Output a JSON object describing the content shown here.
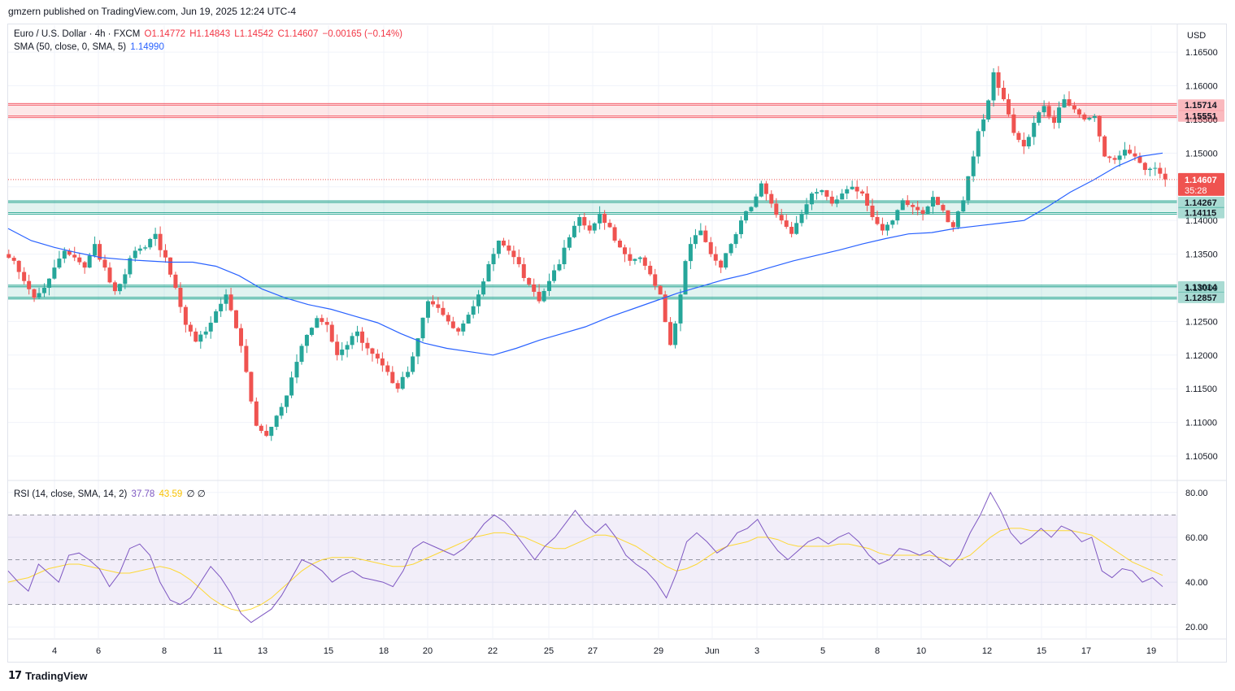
{
  "header": {
    "text": "gmzern published on TradingView.com, Jun 19, 2025 12:24 UTC-4"
  },
  "legend": {
    "symbol": "Euro / U.S. Dollar · 4h · FXCM",
    "open": "O1.14772",
    "high": "H1.14843",
    "low": "L1.14542",
    "close": "C1.14607",
    "change": "−0.00165 (−0.14%)",
    "sma_label": "SMA (50, close, 0, SMA, 5)",
    "sma_value": "1.14990",
    "rsi_label": "RSI (14, close, SMA, 14, 2)",
    "rsi_value": "37.78",
    "rsi_ma_value": "43.59",
    "rsi_extra": "∅ ∅"
  },
  "currency": "USD",
  "footer": {
    "brand": "TradingView",
    "logo": "17"
  },
  "colors": {
    "up": "#26a69a",
    "down": "#ef5350",
    "sma": "#2962ff",
    "rsi": "#7e57c2",
    "rsi_ma": "#fdd835",
    "resistance": "#f23645",
    "support": "#089981"
  },
  "chart_data": [
    {
      "type": "candlestick",
      "title": "Euro / U.S. Dollar · 4h · FXCM",
      "y_axis": {
        "ticks": [
          "1.16500",
          "1.16000",
          "1.15500",
          "1.15000",
          "1.14500",
          "1.14000",
          "1.13500",
          "1.13000",
          "1.12500",
          "1.12000",
          "1.11500",
          "1.11000",
          "1.10500"
        ],
        "range": [
          1.1015,
          1.169
        ]
      },
      "x_axis": {
        "ticks": [
          "4",
          "6",
          "8",
          "11",
          "13",
          "15",
          "18",
          "20",
          "22",
          "25",
          "27",
          "29",
          "Jun",
          "3",
          "5",
          "8",
          "10",
          "12",
          "15",
          "17",
          "19"
        ]
      },
      "price_path": [
        1.134,
        1.131,
        1.1285,
        1.13,
        1.133,
        1.1355,
        1.1345,
        1.133,
        1.1365,
        1.133,
        1.1295,
        1.132,
        1.1355,
        1.136,
        1.138,
        1.1345,
        1.13,
        1.1245,
        1.122,
        1.1235,
        1.1265,
        1.129,
        1.124,
        1.1175,
        1.1095,
        1.108,
        1.111,
        1.114,
        1.119,
        1.123,
        1.1255,
        1.1245,
        1.12,
        1.1215,
        1.1235,
        1.121,
        1.1195,
        1.1175,
        1.115,
        1.1175,
        1.1225,
        1.128,
        1.127,
        1.125,
        1.1235,
        1.126,
        1.129,
        1.1335,
        1.137,
        1.1355,
        1.1335,
        1.1305,
        1.128,
        1.131,
        1.1335,
        1.1375,
        1.1405,
        1.1385,
        1.141,
        1.139,
        1.136,
        1.134,
        1.1345,
        1.132,
        1.129,
        1.1215,
        1.129,
        1.1365,
        1.1385,
        1.135,
        1.133,
        1.1365,
        1.14,
        1.142,
        1.1455,
        1.1425,
        1.14,
        1.138,
        1.141,
        1.144,
        1.1445,
        1.1425,
        1.144,
        1.145,
        1.144,
        1.1405,
        1.1385,
        1.14,
        1.143,
        1.142,
        1.141,
        1.1435,
        1.1415,
        1.139,
        1.143,
        1.1495,
        1.155,
        1.162,
        1.158,
        1.153,
        1.151,
        1.1545,
        1.157,
        1.1545,
        1.158,
        1.1565,
        1.155,
        1.1555,
        1.1495,
        1.149,
        1.1505,
        1.1495,
        1.1475,
        1.1478,
        1.1461
      ],
      "sma_path": [
        1.1388,
        1.137,
        1.136,
        1.1352,
        1.1345,
        1.1342,
        1.134,
        1.1338,
        1.1338,
        1.1332,
        1.1318,
        1.1298,
        1.1285,
        1.1275,
        1.1268,
        1.1258,
        1.1248,
        1.1232,
        1.1218,
        1.121,
        1.1205,
        1.12,
        1.121,
        1.1222,
        1.1232,
        1.1242,
        1.1256,
        1.1268,
        1.128,
        1.1292,
        1.1302,
        1.1312,
        1.132,
        1.133,
        1.134,
        1.1348,
        1.1356,
        1.1365,
        1.1373,
        1.138,
        1.1382,
        1.1388,
        1.1392,
        1.1396,
        1.14,
        1.142,
        1.1442,
        1.146,
        1.148,
        1.1495,
        1.15
      ],
      "sma_value": 1.1499,
      "current_price": {
        "value": "1.14607",
        "countdown": "35:28"
      },
      "resistance_zone": {
        "upper": "1.15714",
        "lower": "1.15551"
      },
      "support_zones": [
        {
          "upper": "1.14267",
          "lower": "1.14115"
        },
        {
          "upper": "1.13014",
          "lower": "1.12857"
        }
      ]
    },
    {
      "type": "line",
      "title": "RSI (14, close, SMA, 14, 2)",
      "y_axis": {
        "ticks": [
          "80.00",
          "60.00",
          "40.00",
          "20.00"
        ],
        "range": [
          15,
          85
        ]
      },
      "levels": [
        70,
        50,
        30
      ],
      "rsi_path": [
        45,
        40,
        36,
        48,
        44,
        40,
        52,
        53,
        50,
        46,
        38,
        44,
        55,
        57,
        52,
        40,
        32,
        30,
        33,
        40,
        47,
        42,
        35,
        26,
        22,
        25,
        28,
        34,
        42,
        50,
        48,
        45,
        40,
        43,
        45,
        42,
        41,
        40,
        38,
        45,
        55,
        58,
        56,
        54,
        52,
        55,
        60,
        66,
        70,
        67,
        62,
        56,
        50,
        56,
        60,
        66,
        72,
        66,
        62,
        66,
        60,
        52,
        48,
        45,
        40,
        33,
        44,
        58,
        62,
        58,
        53,
        56,
        62,
        64,
        68,
        60,
        54,
        50,
        54,
        58,
        60,
        57,
        60,
        62,
        58,
        52,
        48,
        50,
        55,
        54,
        52,
        54,
        50,
        47,
        52,
        62,
        70,
        80,
        72,
        62,
        57,
        60,
        64,
        60,
        65,
        63,
        58,
        60,
        45,
        42,
        46,
        45,
        40,
        42,
        38
      ],
      "rsi_ma_path": [
        40,
        41,
        42,
        44,
        46,
        47,
        48,
        48,
        47,
        46,
        45,
        44,
        44,
        45,
        46,
        47,
        46,
        44,
        41,
        37,
        33,
        30,
        28,
        27,
        28,
        30,
        33,
        37,
        41,
        45,
        48,
        50,
        51,
        51,
        51,
        50,
        49,
        48,
        47,
        47,
        48,
        50,
        52,
        54,
        56,
        58,
        60,
        61,
        62,
        62,
        61,
        60,
        58,
        56,
        55,
        55,
        57,
        59,
        61,
        61,
        60,
        58,
        56,
        53,
        50,
        47,
        45,
        46,
        48,
        51,
        54,
        56,
        57,
        58,
        60,
        60,
        59,
        57,
        56,
        56,
        56,
        56,
        57,
        57,
        56,
        55,
        53,
        52,
        52,
        52,
        52,
        52,
        51,
        50,
        50,
        52,
        56,
        60,
        63,
        64,
        64,
        63,
        63,
        63,
        63,
        63,
        62,
        61,
        58,
        55,
        52,
        49,
        47,
        45,
        43
      ],
      "rsi_value": 37.78,
      "rsi_ma_value": 43.59
    }
  ]
}
